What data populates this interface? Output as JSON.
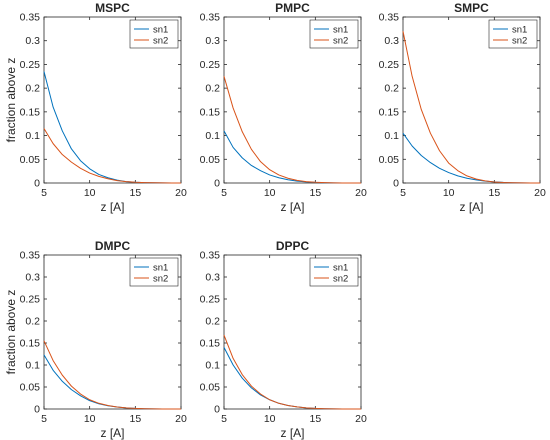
{
  "colors": {
    "sn1": "#0072BD",
    "sn2": "#D95319",
    "axis": "#262626"
  },
  "chart_data": [
    {
      "type": "line",
      "title": "MSPC",
      "xlabel": "z [A]",
      "ylabel": "fraction above z",
      "xlim": [
        5,
        20
      ],
      "ylim": [
        0,
        0.35
      ],
      "grid": false,
      "legend": "top-right",
      "x_ticks": [
        "5",
        "10",
        "15",
        "20"
      ],
      "y_ticks": [
        "0",
        "0.05",
        "0.1",
        "0.15",
        "0.2",
        "0.25",
        "0.3",
        "0.35"
      ],
      "x": [
        5,
        6,
        7,
        8,
        9,
        10,
        11,
        12,
        13,
        14,
        15,
        16,
        17,
        18,
        19,
        20
      ],
      "series": [
        {
          "name": "sn1",
          "color": "#0072BD",
          "values": [
            0.235,
            0.16,
            0.11,
            0.072,
            0.047,
            0.03,
            0.018,
            0.011,
            0.006,
            0.003,
            0.0017,
            0.0009,
            0.0005,
            0.0002,
            0.0001,
            0
          ]
        },
        {
          "name": "sn2",
          "color": "#D95319",
          "values": [
            0.115,
            0.083,
            0.06,
            0.044,
            0.031,
            0.021,
            0.014,
            0.009,
            0.005,
            0.003,
            0.0017,
            0.0009,
            0.0005,
            0.0002,
            0.0001,
            0
          ]
        }
      ]
    },
    {
      "type": "line",
      "title": "PMPC",
      "xlabel": "z [A]",
      "ylabel": "",
      "xlim": [
        5,
        20
      ],
      "ylim": [
        0,
        0.35
      ],
      "grid": false,
      "legend": "top-right",
      "x_ticks": [
        "5",
        "10",
        "15",
        "20"
      ],
      "y_ticks": [
        "0",
        "0.05",
        "0.1",
        "0.15",
        "0.2",
        "0.25",
        "0.3",
        "0.35"
      ],
      "x": [
        5,
        6,
        7,
        8,
        9,
        10,
        11,
        12,
        13,
        14,
        15,
        16,
        17,
        18,
        19,
        20
      ],
      "series": [
        {
          "name": "sn1",
          "color": "#0072BD",
          "values": [
            0.11,
            0.075,
            0.053,
            0.037,
            0.026,
            0.017,
            0.011,
            0.0068,
            0.004,
            0.0023,
            0.0012,
            0.0006,
            0.0003,
            0.0001,
            5e-05,
            0
          ]
        },
        {
          "name": "sn2",
          "color": "#D95319",
          "values": [
            0.225,
            0.158,
            0.108,
            0.071,
            0.045,
            0.028,
            0.017,
            0.01,
            0.0055,
            0.003,
            0.0015,
            0.0007,
            0.0003,
            0.0001,
            5e-05,
            0
          ]
        }
      ]
    },
    {
      "type": "line",
      "title": "SMPC",
      "xlabel": "z [A]",
      "ylabel": "",
      "xlim": [
        5,
        20
      ],
      "ylim": [
        0,
        0.35
      ],
      "grid": false,
      "legend": "top-right",
      "x_ticks": [
        "5",
        "10",
        "15",
        "20"
      ],
      "y_ticks": [
        "0",
        "0.05",
        "0.1",
        "0.15",
        "0.2",
        "0.25",
        "0.3",
        "0.35"
      ],
      "x": [
        5,
        6,
        7,
        8,
        9,
        10,
        11,
        12,
        13,
        14,
        15,
        16,
        17,
        18,
        19,
        20
      ],
      "series": [
        {
          "name": "sn1",
          "color": "#0072BD",
          "values": [
            0.105,
            0.078,
            0.058,
            0.043,
            0.031,
            0.022,
            0.015,
            0.01,
            0.0065,
            0.004,
            0.0023,
            0.0012,
            0.0006,
            0.0003,
            0.0001,
            0
          ]
        },
        {
          "name": "sn2",
          "color": "#D95319",
          "values": [
            0.32,
            0.225,
            0.155,
            0.105,
            0.068,
            0.042,
            0.026,
            0.015,
            0.0085,
            0.0045,
            0.0022,
            0.001,
            0.0004,
            0.0002,
            0.0001,
            0
          ]
        }
      ]
    },
    {
      "type": "line",
      "title": "DMPC",
      "xlabel": "z [A]",
      "ylabel": "fraction above z",
      "xlim": [
        5,
        20
      ],
      "ylim": [
        0,
        0.35
      ],
      "grid": false,
      "legend": "top-right",
      "x_ticks": [
        "5",
        "10",
        "15",
        "20"
      ],
      "y_ticks": [
        "0",
        "0.05",
        "0.1",
        "0.15",
        "0.2",
        "0.25",
        "0.3",
        "0.35"
      ],
      "x": [
        5,
        6,
        7,
        8,
        9,
        10,
        11,
        12,
        13,
        14,
        15,
        16,
        17,
        18,
        19,
        20
      ],
      "series": [
        {
          "name": "sn1",
          "color": "#0072BD",
          "values": [
            0.123,
            0.088,
            0.063,
            0.044,
            0.03,
            0.019,
            0.012,
            0.0075,
            0.0045,
            0.0025,
            0.0013,
            0.0006,
            0.0003,
            0.0001,
            5e-05,
            0
          ]
        },
        {
          "name": "sn2",
          "color": "#D95319",
          "values": [
            0.155,
            0.11,
            0.077,
            0.052,
            0.034,
            0.021,
            0.013,
            0.008,
            0.0045,
            0.0025,
            0.0013,
            0.0006,
            0.0003,
            0.0001,
            5e-05,
            0
          ]
        }
      ]
    },
    {
      "type": "line",
      "title": "DPPC",
      "xlabel": "z [A]",
      "ylabel": "",
      "xlim": [
        5,
        20
      ],
      "ylim": [
        0,
        0.35
      ],
      "grid": false,
      "legend": "top-right",
      "x_ticks": [
        "5",
        "10",
        "15",
        "20"
      ],
      "y_ticks": [
        "0",
        "0.05",
        "0.1",
        "0.15",
        "0.2",
        "0.25",
        "0.3",
        "0.35"
      ],
      "x": [
        5,
        6,
        7,
        8,
        9,
        10,
        11,
        12,
        13,
        14,
        15,
        16,
        17,
        18,
        19,
        20
      ],
      "series": [
        {
          "name": "sn1",
          "color": "#0072BD",
          "values": [
            0.14,
            0.1,
            0.07,
            0.048,
            0.032,
            0.021,
            0.013,
            0.008,
            0.0047,
            0.0026,
            0.0014,
            0.0007,
            0.0003,
            0.0001,
            5e-05,
            0
          ]
        },
        {
          "name": "sn2",
          "color": "#D95319",
          "values": [
            0.168,
            0.115,
            0.078,
            0.052,
            0.034,
            0.021,
            0.013,
            0.008,
            0.0047,
            0.0026,
            0.0014,
            0.0007,
            0.0003,
            0.0001,
            5e-05,
            0
          ]
        }
      ]
    }
  ]
}
